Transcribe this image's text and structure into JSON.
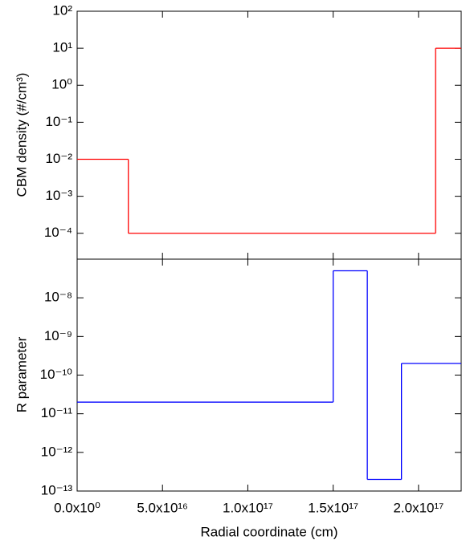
{
  "chart_data": [
    {
      "type": "step",
      "ylabel": "CBM density (#/cm³)",
      "color": "#ff0000",
      "yscale": "log",
      "x": [
        0,
        3e+16,
        2.1e+17
      ],
      "values": [
        0.01,
        0.0001,
        10
      ],
      "xlim": [
        0,
        2.25e+17
      ],
      "ylim": [
        2e-05,
        100
      ],
      "yticks": [
        {
          "value": 100,
          "label": "10²"
        },
        {
          "value": 10,
          "label": "10¹"
        },
        {
          "value": 1,
          "label": "10⁰"
        },
        {
          "value": 0.1,
          "label": "10⁻¹"
        },
        {
          "value": 0.01,
          "label": "10⁻²"
        },
        {
          "value": 0.001,
          "label": "10⁻³"
        },
        {
          "value": 0.0001,
          "label": "10⁻⁴"
        }
      ]
    },
    {
      "type": "step",
      "ylabel": "R parameter",
      "xlabel": "Radial coordinate (cm)",
      "color": "#0000ff",
      "yscale": "log",
      "x": [
        0,
        1.5e+17,
        1.7e+17,
        1.9e+17
      ],
      "values": [
        2e-11,
        5e-08,
        2e-13,
        2e-10
      ],
      "xlim": [
        0,
        2.25e+17
      ],
      "ylim": [
        1e-13,
        1e-07
      ],
      "xticks": [
        {
          "value": 0,
          "label": "0.0x10⁰"
        },
        {
          "value": 5e+16,
          "label": "5.0x10¹⁶"
        },
        {
          "value": 1e+17,
          "label": "1.0x10¹⁷"
        },
        {
          "value": 1.5e+17,
          "label": "1.5x10¹⁷"
        },
        {
          "value": 2e+17,
          "label": "2.0x10¹⁷"
        }
      ],
      "yticks": [
        {
          "value": 1e-08,
          "label": "10⁻⁸"
        },
        {
          "value": 1e-09,
          "label": "10⁻⁹"
        },
        {
          "value": 1e-10,
          "label": "10⁻¹⁰"
        },
        {
          "value": 1e-11,
          "label": "10⁻¹¹"
        },
        {
          "value": 1e-12,
          "label": "10⁻¹²"
        },
        {
          "value": 1e-13,
          "label": "10⁻¹³"
        }
      ]
    }
  ]
}
